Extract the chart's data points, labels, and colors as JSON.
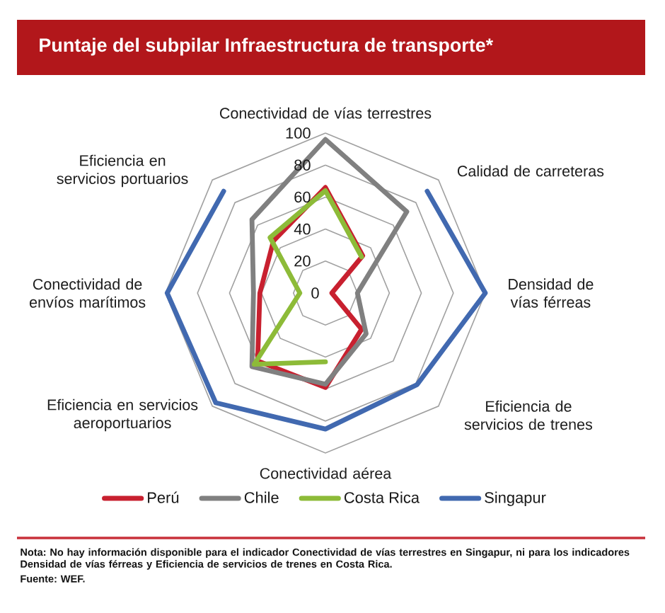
{
  "chart_data": {
    "type": "radar",
    "title": "Puntaje del subpilar Infraestructura de transporte*",
    "categories": [
      "Conectividad de vías terrestres",
      "Calidad de carreteras",
      "Densidad de vías férreas",
      "Eficiencia de servicios de trenes",
      "Conectividad aérea",
      "Eficiencia en servicios aeroportuarios",
      "Conectividad de envíos marítimos",
      "Eficiencia en servicios portuarios"
    ],
    "ylim": [
      0,
      100
    ],
    "yticks": [
      0,
      20,
      40,
      60,
      80,
      100
    ],
    "grid": true,
    "legend": "bottom",
    "series": [
      {
        "name": "Perú",
        "color": "#c8202f",
        "values": [
          66,
          33,
          4,
          32,
          59,
          60,
          41,
          46
        ]
      },
      {
        "name": "Chile",
        "color": "#808080",
        "values": [
          96,
          72,
          20,
          36,
          57,
          65,
          45,
          65
        ]
      },
      {
        "name": "Costa Rica",
        "color": "#8dbb38",
        "values": [
          64,
          32,
          null,
          null,
          43,
          63,
          16,
          49
        ]
      },
      {
        "name": "Singapur",
        "color": "#4169b0",
        "values": [
          null,
          90,
          100,
          81,
          85,
          97,
          99,
          90
        ]
      }
    ],
    "annotations": [
      "Nota: No hay información disponible para el indicador Conectividad de vías terrestres en Singapur, ni para los indicadores Densidad de vías férreas y Eficiencia de servicios de trenes en Costa Rica.",
      "Fuente: WEF."
    ]
  }
}
